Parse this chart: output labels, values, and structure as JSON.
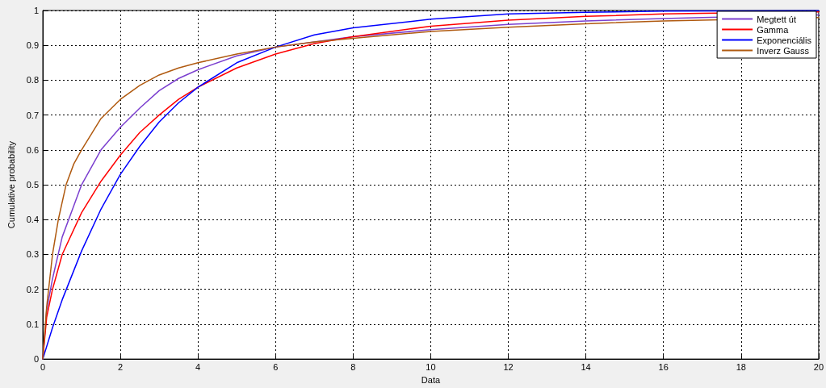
{
  "chart_data": {
    "type": "line",
    "xlabel": "Data",
    "ylabel": "Cumulative probability",
    "xlim": [
      0,
      20
    ],
    "xticks": [
      0,
      2,
      4,
      6,
      8,
      10,
      12,
      14,
      16,
      18,
      20
    ],
    "ylim": [
      0,
      1
    ],
    "yticks": [
      0,
      0.1,
      0.2,
      0.3,
      0.4,
      0.5,
      0.6,
      0.7,
      0.8,
      0.9,
      1
    ],
    "grid": true,
    "legend": "top right",
    "marker": "none",
    "line_style": "solid",
    "series": [
      {
        "name": "Megtett út",
        "color": "#7b3fcf",
        "x": [
          0,
          0.1,
          0.25,
          0.5,
          1,
          1.5,
          2,
          2.5,
          3,
          3.5,
          4,
          5,
          6,
          7,
          8,
          10,
          12,
          14,
          16,
          17,
          20
        ],
        "values": [
          0,
          0.14,
          0.23,
          0.35,
          0.5,
          0.6,
          0.665,
          0.72,
          0.77,
          0.805,
          0.83,
          0.87,
          0.895,
          0.91,
          0.925,
          0.945,
          0.96,
          0.97,
          0.977,
          0.98,
          0.987
        ]
      },
      {
        "name": "Gamma",
        "color": "#ff0000",
        "x": [
          0,
          0.1,
          0.25,
          0.5,
          1,
          1.5,
          2,
          2.5,
          3,
          3.5,
          4,
          5,
          6,
          7,
          8,
          10,
          12,
          14,
          16,
          17,
          20
        ],
        "values": [
          0,
          0.12,
          0.2,
          0.3,
          0.42,
          0.51,
          0.585,
          0.65,
          0.7,
          0.745,
          0.78,
          0.835,
          0.875,
          0.905,
          0.925,
          0.955,
          0.972,
          0.983,
          0.99,
          0.992,
          0.996
        ]
      },
      {
        "name": "Exponenciális",
        "color": "#0000ff",
        "x": [
          0,
          0.25,
          0.5,
          1,
          1.5,
          2,
          2.5,
          3,
          3.5,
          4,
          5,
          6,
          7,
          8,
          10,
          12,
          14,
          16,
          18,
          20
        ],
        "values": [
          0,
          0.09,
          0.17,
          0.31,
          0.43,
          0.53,
          0.61,
          0.68,
          0.735,
          0.78,
          0.85,
          0.895,
          0.93,
          0.95,
          0.975,
          0.99,
          0.995,
          0.998,
          0.999,
          1
        ]
      },
      {
        "name": "Inverz Gauss",
        "color": "#b05a10",
        "x": [
          0,
          0.1,
          0.25,
          0.4,
          0.6,
          0.8,
          1,
          1.5,
          2,
          2.5,
          3,
          3.5,
          4,
          5,
          6,
          7,
          8,
          10,
          12,
          14,
          16,
          17,
          20
        ],
        "values": [
          0,
          0.15,
          0.3,
          0.4,
          0.5,
          0.56,
          0.6,
          0.69,
          0.745,
          0.785,
          0.815,
          0.835,
          0.85,
          0.875,
          0.895,
          0.91,
          0.92,
          0.94,
          0.952,
          0.962,
          0.97,
          0.972,
          0.98
        ]
      }
    ]
  }
}
